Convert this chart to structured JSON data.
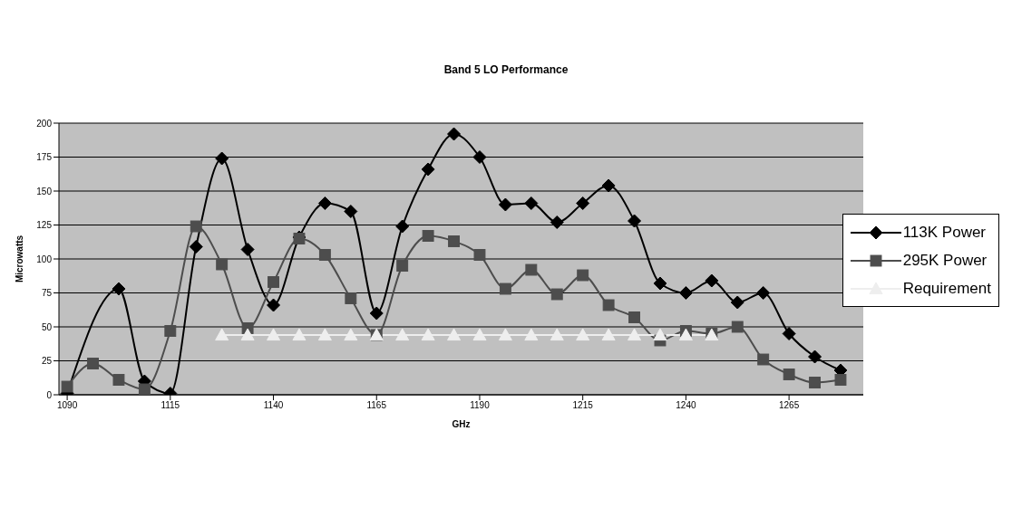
{
  "chart_data": {
    "type": "line",
    "title": "Band 5 LO Performance",
    "xlabel": "GHz",
    "ylabel": "Microwatts",
    "x": [
      1090,
      1096.25,
      1102.5,
      1108.75,
      1115,
      1121.25,
      1127.5,
      1133.75,
      1140,
      1146.25,
      1152.5,
      1158.75,
      1165,
      1171.25,
      1177.5,
      1183.75,
      1190,
      1196.25,
      1202.5,
      1208.75,
      1215,
      1221.25,
      1227.5,
      1233.75,
      1240,
      1246.25,
      1252.5,
      1258.75,
      1265,
      1271.25,
      1277.5
    ],
    "series": [
      {
        "name": "113K Power",
        "color": "#000000",
        "marker": "diamond",
        "values": [
          1,
          null,
          78,
          10,
          1,
          109,
          174,
          107,
          66,
          116,
          141,
          135,
          60,
          124,
          166,
          192,
          175,
          140,
          141,
          127,
          141,
          154,
          128,
          82,
          75,
          84,
          68,
          75,
          45,
          28,
          18
        ]
      },
      {
        "name": "295K Power",
        "color": "#4d4d4d",
        "marker": "square",
        "values": [
          6,
          23,
          11,
          4,
          47,
          124,
          96,
          49,
          83,
          115,
          103,
          71,
          44,
          95,
          117,
          113,
          103,
          78,
          92,
          74,
          88,
          66,
          57,
          40,
          47,
          45,
          50,
          26,
          15,
          9,
          11
        ]
      },
      {
        "name": "Requirement",
        "color": "#eeeeee",
        "marker": "triangle",
        "values": [
          null,
          null,
          null,
          null,
          null,
          null,
          44,
          44,
          44,
          44,
          44,
          44,
          44,
          44,
          44,
          44,
          44,
          44,
          44,
          44,
          44,
          44,
          44,
          44,
          44,
          44,
          null,
          null,
          null,
          null,
          null
        ]
      }
    ],
    "xlim": [
      1088,
      1283
    ],
    "xticks": [
      1090,
      1115,
      1140,
      1165,
      1190,
      1215,
      1240,
      1265
    ],
    "ylim": [
      0,
      200
    ],
    "yticks": [
      0,
      25,
      50,
      75,
      100,
      125,
      150,
      175,
      200
    ],
    "grid": "y",
    "legend": "right",
    "line_style": "solid"
  }
}
